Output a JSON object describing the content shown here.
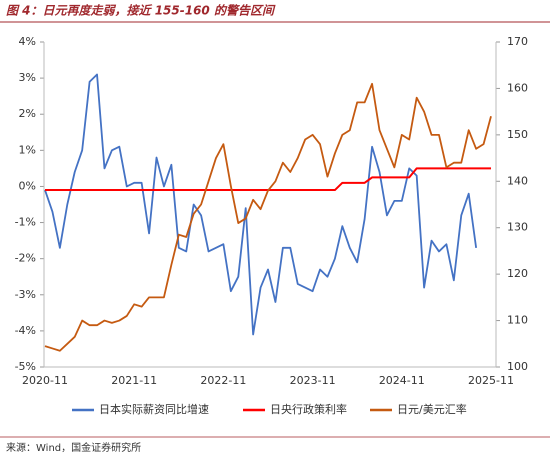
{
  "chart_data": {
    "type": "line",
    "title": "图 4：日元再度走弱，接近 155-160 的警告区间",
    "source": "来源：Wind，国金证券研究所",
    "categories": [
      "2020-11",
      null,
      null,
      null,
      null,
      null,
      null,
      null,
      null,
      null,
      null,
      null,
      "2021-11",
      null,
      null,
      null,
      null,
      null,
      null,
      null,
      null,
      null,
      null,
      null,
      "2022-11",
      null,
      null,
      null,
      null,
      null,
      null,
      null,
      null,
      null,
      null,
      null,
      "2023-11",
      null,
      null,
      null,
      null,
      null,
      null,
      null,
      null,
      null,
      null,
      null,
      "2024-11",
      null,
      null,
      null,
      null,
      null,
      null,
      null,
      null,
      null,
      null,
      null,
      "2025-11"
    ],
    "series": [
      {
        "name": "日本实际薪资同比增速",
        "color": "#4472c4",
        "axis": "y",
        "values": [
          -0.1,
          -0.7,
          -1.7,
          -0.5,
          0.4,
          1.0,
          2.9,
          3.1,
          0.5,
          1.0,
          1.1,
          0.0,
          0.1,
          0.1,
          -1.3,
          0.8,
          0.0,
          0.6,
          -1.7,
          -1.8,
          -0.5,
          -0.8,
          -1.8,
          -1.7,
          -1.6,
          -2.9,
          -2.5,
          -0.6,
          -4.1,
          -2.8,
          -2.3,
          -3.2,
          -1.7,
          -1.7,
          -2.7,
          -2.8,
          -2.9,
          -2.3,
          -2.5,
          -2.0,
          -1.1,
          -1.7,
          -2.1,
          -0.9,
          1.1,
          0.4,
          -0.8,
          -0.4,
          -0.4,
          0.5,
          0.3,
          -2.8,
          -1.5,
          -1.8,
          -1.6,
          -2.6,
          -0.8,
          -0.2,
          -1.7,
          null,
          null
        ]
      },
      {
        "name": "日央行政策利率",
        "color": "#ff0000",
        "axis": "y",
        "values": [
          -0.1,
          -0.1,
          -0.1,
          -0.1,
          -0.1,
          -0.1,
          -0.1,
          -0.1,
          -0.1,
          -0.1,
          -0.1,
          -0.1,
          -0.1,
          -0.1,
          -0.1,
          -0.1,
          -0.1,
          -0.1,
          -0.1,
          -0.1,
          -0.1,
          -0.1,
          -0.1,
          -0.1,
          -0.1,
          -0.1,
          -0.1,
          -0.1,
          -0.1,
          -0.1,
          -0.1,
          -0.1,
          -0.1,
          -0.1,
          -0.1,
          -0.1,
          -0.1,
          -0.1,
          -0.1,
          -0.1,
          0.1,
          0.1,
          0.1,
          0.1,
          0.25,
          0.25,
          0.25,
          0.25,
          0.25,
          0.25,
          0.5,
          0.5,
          0.5,
          0.5,
          0.5,
          0.5,
          0.5,
          0.5,
          0.5,
          0.5,
          0.5
        ]
      },
      {
        "name": "日元/美元汇率",
        "color": "#c55a11",
        "axis": "y2",
        "values": [
          104.5,
          104,
          103.5,
          105,
          106.5,
          110,
          109,
          109,
          110,
          109.5,
          110,
          111,
          113.5,
          113,
          115,
          115,
          115,
          122,
          128.5,
          128,
          133,
          135,
          140,
          145,
          148,
          139,
          131,
          132,
          136,
          134,
          138,
          140,
          144,
          142,
          145,
          149,
          150,
          148,
          141,
          146,
          150,
          151,
          157,
          157,
          161,
          151,
          147,
          143,
          150,
          149,
          158,
          155,
          150,
          150,
          143,
          144,
          144,
          151,
          147,
          148,
          154
        ]
      }
    ],
    "ylim": [
      -5,
      4
    ],
    "yticks": [
      {
        "value": -5,
        "label": "-5%"
      },
      {
        "value": -4,
        "label": "-4%"
      },
      {
        "value": -3,
        "label": "-3%"
      },
      {
        "value": -2,
        "label": "-2%"
      },
      {
        "value": -1,
        "label": "-1%"
      },
      {
        "value": 0,
        "label": "0%"
      },
      {
        "value": 1,
        "label": "1%"
      },
      {
        "value": 2,
        "label": "2%"
      },
      {
        "value": 3,
        "label": "3%"
      },
      {
        "value": 4,
        "label": "4%"
      }
    ],
    "y2lim": [
      100,
      170
    ],
    "y2ticks": [
      100,
      110,
      120,
      130,
      140,
      150,
      160,
      170
    ],
    "legend": "bottom"
  }
}
